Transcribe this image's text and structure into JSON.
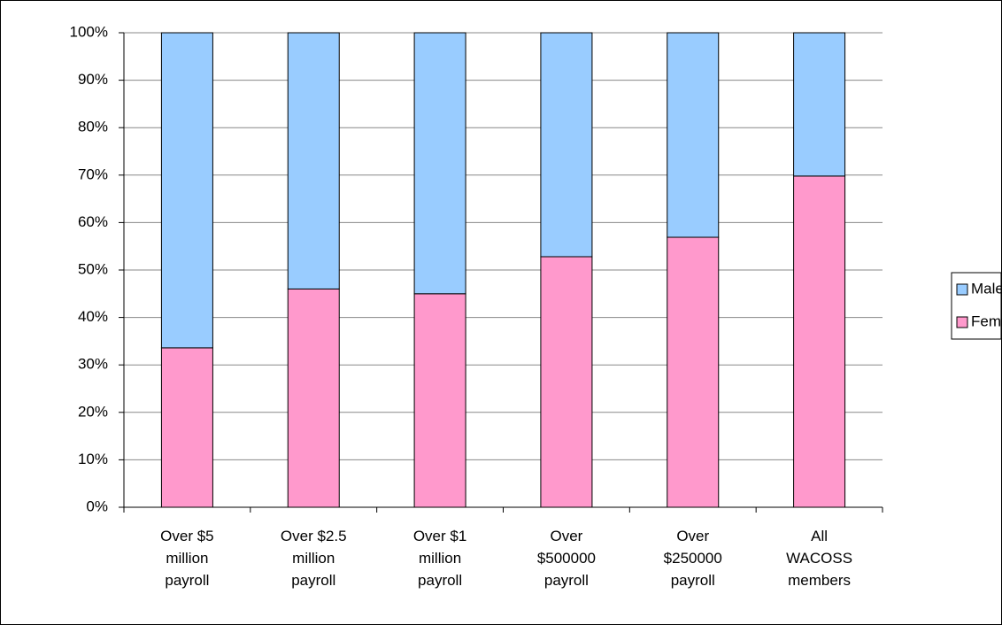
{
  "chart_data": {
    "type": "stacked_bar",
    "categories": [
      "Over $5\nmillion\npayroll",
      "Over $2.5\nmillion\npayroll",
      "Over $1\nmillion\npayroll",
      "Over\n$500000\npayroll",
      "Over\n$250000\npayroll",
      "All\nWACOSS\nmembers"
    ],
    "series": [
      {
        "name": "Female",
        "color": "#ff99cc",
        "values": [
          33.6,
          46,
          45,
          52.8,
          56.9,
          69.8
        ]
      },
      {
        "name": "Male",
        "color": "#99ccff",
        "values": [
          66.4,
          54,
          55,
          47.2,
          43.1,
          30.2
        ]
      }
    ],
    "ylim": [
      0,
      100
    ],
    "yticks": [
      {
        "value": 0,
        "label": "0%"
      },
      {
        "value": 10,
        "label": "10%"
      },
      {
        "value": 20,
        "label": "20%"
      },
      {
        "value": 30,
        "label": "30%"
      },
      {
        "value": 40,
        "label": "40%"
      },
      {
        "value": 50,
        "label": "50%"
      },
      {
        "value": 60,
        "label": "60%"
      },
      {
        "value": 70,
        "label": "70%"
      },
      {
        "value": 80,
        "label": "80%"
      },
      {
        "value": 90,
        "label": "90%"
      },
      {
        "value": 100,
        "label": "100%"
      }
    ],
    "grid": true,
    "legend": "right"
  }
}
